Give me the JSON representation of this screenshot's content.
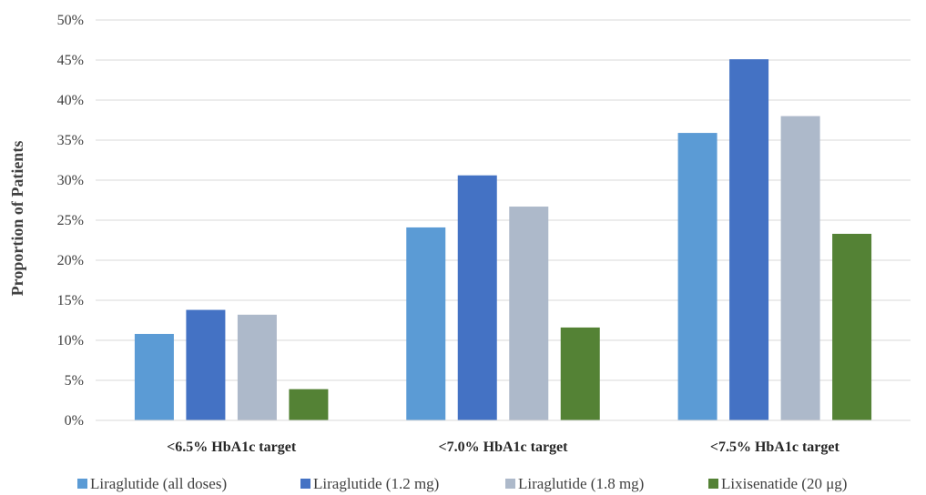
{
  "chart_data": {
    "type": "bar",
    "title": "",
    "xlabel": "",
    "ylabel": "Proportion of Patients",
    "ylim": [
      0,
      50
    ],
    "yticks": [
      "0%",
      "5%",
      "10%",
      "15%",
      "20%",
      "25%",
      "30%",
      "35%",
      "40%",
      "45%",
      "50%"
    ],
    "grid": true,
    "legend_position": "bottom",
    "categories": [
      "<6.5% HbA1c target",
      "<7.0% HbA1c target",
      "<7.5% HbA1c target"
    ],
    "series": [
      {
        "name": "Liraglutide (all doses)",
        "color": "#5B9BD5",
        "values": [
          10.8,
          24.1,
          35.9
        ]
      },
      {
        "name": "Liraglutide (1.2 mg)",
        "color": "#4472C4",
        "values": [
          13.8,
          30.6,
          45.1
        ]
      },
      {
        "name": "Liraglutide (1.8 mg)",
        "color": "#ADB9CA",
        "values": [
          13.2,
          26.7,
          38.0
        ]
      },
      {
        "name": "Lixisenatide (20 μg)",
        "color": "#548235",
        "values": [
          3.9,
          11.6,
          23.3
        ]
      }
    ]
  }
}
